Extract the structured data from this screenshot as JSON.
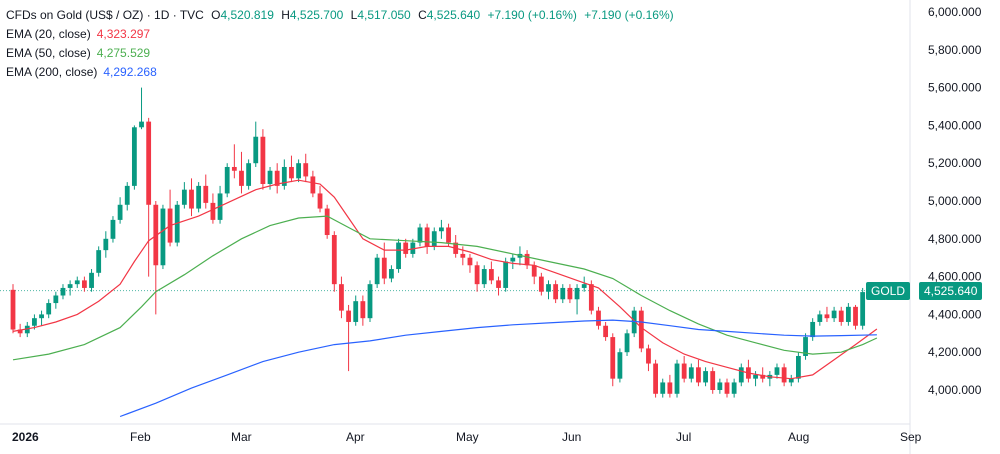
{
  "legend": {
    "symbol": "CFDs on Gold (US$ / OZ) · 1D · TVC",
    "open_label": "O",
    "open": "4,520.819",
    "high_label": "H",
    "high": "4,525.700",
    "low_label": "L",
    "low": "4,517.050",
    "close_label": "C",
    "close": "4,525.640",
    "change": "+7.190 (+0.16%)",
    "change2": "+7.190 (+0.16%)",
    "ema20_label": "EMA (20, close)",
    "ema20_value": "4,323.297",
    "ema50_label": "EMA (50, close)",
    "ema50_value": "4,275.529",
    "ema200_label": "EMA (200, close)",
    "ema200_value": "4,292.268"
  },
  "price_tag": {
    "symbol": "GOLD",
    "price": "4,525.640"
  },
  "colors": {
    "up": "#089981",
    "down": "#f23645",
    "ema20": "#f23645",
    "ema50": "#4caf50",
    "ema200": "#2962ff",
    "tag": "#089981"
  },
  "chart_data": {
    "type": "candlestick",
    "y_ticks": [
      "6,000.000",
      "5,800.000",
      "5,600.000",
      "5,400.000",
      "5,200.000",
      "5,000.000",
      "4,800.000",
      "4,600.000",
      "4,400.000",
      "4,200.000",
      "4,000.000"
    ],
    "x_ticks": [
      "2026",
      "Feb",
      "Mar",
      "Apr",
      "May",
      "Jun",
      "Jul",
      "Aug",
      "Sep"
    ],
    "ylim": [
      3850,
      6080
    ],
    "last_close": 4525.64,
    "candles": [
      [
        4530,
        4560,
        4300,
        4320
      ],
      [
        4320,
        4350,
        4280,
        4300
      ],
      [
        4300,
        4360,
        4280,
        4340
      ],
      [
        4340,
        4400,
        4320,
        4380
      ],
      [
        4380,
        4420,
        4340,
        4400
      ],
      [
        4400,
        4480,
        4380,
        4460
      ],
      [
        4460,
        4520,
        4430,
        4500
      ],
      [
        4500,
        4560,
        4480,
        4540
      ],
      [
        4540,
        4580,
        4500,
        4560
      ],
      [
        4560,
        4600,
        4540,
        4580
      ],
      [
        4580,
        4600,
        4520,
        4540
      ],
      [
        4540,
        4640,
        4520,
        4620
      ],
      [
        4620,
        4760,
        4600,
        4740
      ],
      [
        4740,
        4840,
        4700,
        4800
      ],
      [
        4800,
        4920,
        4780,
        4900
      ],
      [
        4900,
        5020,
        4880,
        4980
      ],
      [
        4980,
        5100,
        4950,
        5080
      ],
      [
        5080,
        5400,
        5060,
        5390
      ],
      [
        5390,
        5600,
        5380,
        5420
      ],
      [
        5420,
        5440,
        4600,
        4980
      ],
      [
        4980,
        5000,
        4400,
        4660
      ],
      [
        4660,
        4980,
        4640,
        4960
      ],
      [
        4960,
        5060,
        4760,
        4780
      ],
      [
        4780,
        5000,
        4760,
        4980
      ],
      [
        4980,
        5100,
        4960,
        5060
      ],
      [
        5060,
        5120,
        4920,
        4960
      ],
      [
        4960,
        5100,
        4940,
        5080
      ],
      [
        5080,
        5140,
        4960,
        4990
      ],
      [
        4990,
        5040,
        4880,
        4900
      ],
      [
        4900,
        5080,
        4880,
        5040
      ],
      [
        5040,
        5200,
        5020,
        5180
      ],
      [
        5180,
        5300,
        5120,
        5160
      ],
      [
        5160,
        5260,
        5040,
        5080
      ],
      [
        5080,
        5220,
        5060,
        5200
      ],
      [
        5200,
        5420,
        5180,
        5340
      ],
      [
        5340,
        5380,
        5060,
        5090
      ],
      [
        5090,
        5180,
        5060,
        5160
      ],
      [
        5160,
        5200,
        5040,
        5080
      ],
      [
        5080,
        5220,
        5060,
        5180
      ],
      [
        5180,
        5240,
        5100,
        5120
      ],
      [
        5120,
        5220,
        5100,
        5200
      ],
      [
        5200,
        5250,
        5100,
        5130
      ],
      [
        5130,
        5160,
        5020,
        5040
      ],
      [
        5040,
        5080,
        4940,
        4960
      ],
      [
        4960,
        4980,
        4800,
        4820
      ],
      [
        4820,
        4840,
        4520,
        4560
      ],
      [
        4560,
        4600,
        4380,
        4420
      ],
      [
        4420,
        4450,
        4100,
        4360
      ],
      [
        4360,
        4500,
        4340,
        4470
      ],
      [
        4470,
        4500,
        4340,
        4380
      ],
      [
        4380,
        4580,
        4360,
        4560
      ],
      [
        4560,
        4720,
        4540,
        4700
      ],
      [
        4700,
        4780,
        4560,
        4590
      ],
      [
        4590,
        4660,
        4570,
        4640
      ],
      [
        4640,
        4800,
        4620,
        4780
      ],
      [
        4780,
        4800,
        4700,
        4720
      ],
      [
        4720,
        4800,
        4700,
        4780
      ],
      [
        4780,
        4880,
        4760,
        4860
      ],
      [
        4860,
        4880,
        4720,
        4760
      ],
      [
        4760,
        4860,
        4740,
        4840
      ],
      [
        4840,
        4900,
        4800,
        4860
      ],
      [
        4860,
        4880,
        4760,
        4780
      ],
      [
        4780,
        4820,
        4700,
        4720
      ],
      [
        4720,
        4760,
        4660,
        4700
      ],
      [
        4700,
        4720,
        4620,
        4660
      ],
      [
        4660,
        4680,
        4520,
        4560
      ],
      [
        4560,
        4660,
        4540,
        4640
      ],
      [
        4640,
        4680,
        4560,
        4580
      ],
      [
        4580,
        4600,
        4500,
        4540
      ],
      [
        4540,
        4700,
        4520,
        4680
      ],
      [
        4680,
        4720,
        4640,
        4700
      ],
      [
        4700,
        4760,
        4660,
        4720
      ],
      [
        4720,
        4740,
        4640,
        4660
      ],
      [
        4660,
        4680,
        4560,
        4600
      ],
      [
        4600,
        4620,
        4500,
        4520
      ],
      [
        4520,
        4580,
        4480,
        4560
      ],
      [
        4560,
        4580,
        4460,
        4480
      ],
      [
        4480,
        4560,
        4460,
        4540
      ],
      [
        4540,
        4560,
        4460,
        4480
      ],
      [
        4480,
        4560,
        4400,
        4540
      ],
      [
        4540,
        4600,
        4520,
        4560
      ],
      [
        4560,
        4580,
        4400,
        4420
      ],
      [
        4420,
        4440,
        4320,
        4340
      ],
      [
        4340,
        4360,
        4260,
        4280
      ],
      [
        4280,
        4300,
        4020,
        4060
      ],
      [
        4060,
        4220,
        4040,
        4200
      ],
      [
        4200,
        4320,
        4180,
        4300
      ],
      [
        4300,
        4440,
        4280,
        4420
      ],
      [
        4420,
        4440,
        4200,
        4220
      ],
      [
        4220,
        4240,
        4100,
        4140
      ],
      [
        4140,
        4160,
        3960,
        3980
      ],
      [
        3980,
        4060,
        3960,
        4040
      ],
      [
        4040,
        4080,
        3960,
        3980
      ],
      [
        3980,
        4160,
        3960,
        4140
      ],
      [
        4140,
        4180,
        4040,
        4060
      ],
      [
        4060,
        4140,
        4040,
        4120
      ],
      [
        4120,
        4160,
        4020,
        4040
      ],
      [
        4040,
        4120,
        4020,
        4100
      ],
      [
        4100,
        4120,
        3980,
        4000
      ],
      [
        4000,
        4060,
        3980,
        4040
      ],
      [
        4040,
        4060,
        3960,
        3980
      ],
      [
        3980,
        4060,
        3960,
        4040
      ],
      [
        4040,
        4140,
        4020,
        4120
      ],
      [
        4120,
        4160,
        4040,
        4060
      ],
      [
        4060,
        4100,
        4020,
        4080
      ],
      [
        4080,
        4120,
        4040,
        4060
      ],
      [
        4060,
        4100,
        4020,
        4080
      ],
      [
        4080,
        4140,
        4060,
        4120
      ],
      [
        4120,
        4140,
        4020,
        4040
      ],
      [
        4040,
        4080,
        4020,
        4060
      ],
      [
        4060,
        4200,
        4040,
        4180
      ],
      [
        4180,
        4300,
        4160,
        4280
      ],
      [
        4280,
        4380,
        4260,
        4360
      ],
      [
        4360,
        4420,
        4340,
        4400
      ],
      [
        4400,
        4440,
        4360,
        4380
      ],
      [
        4380,
        4440,
        4360,
        4420
      ],
      [
        4420,
        4440,
        4340,
        4360
      ],
      [
        4360,
        4460,
        4340,
        4440
      ],
      [
        4440,
        4450,
        4320,
        4340
      ],
      [
        4340,
        4540,
        4320,
        4518
      ],
      [
        4520.819,
        4525.7,
        4517.05,
        4525.64
      ]
    ],
    "series": [
      {
        "name": "EMA (20, close)",
        "values": [
          [
            0,
            4310
          ],
          [
            3,
            4330
          ],
          [
            6,
            4360
          ],
          [
            9,
            4400
          ],
          [
            12,
            4470
          ],
          [
            15,
            4560
          ],
          [
            17,
            4680
          ],
          [
            19,
            4790
          ],
          [
            22,
            4870
          ],
          [
            26,
            4920
          ],
          [
            30,
            4990
          ],
          [
            34,
            5060
          ],
          [
            37,
            5090
          ],
          [
            40,
            5110
          ],
          [
            43,
            5090
          ],
          [
            45,
            5020
          ],
          [
            47,
            4910
          ],
          [
            49,
            4800
          ],
          [
            52,
            4740
          ],
          [
            55,
            4740
          ],
          [
            58,
            4760
          ],
          [
            61,
            4760
          ],
          [
            64,
            4730
          ],
          [
            67,
            4690
          ],
          [
            70,
            4670
          ],
          [
            73,
            4660
          ],
          [
            76,
            4620
          ],
          [
            79,
            4580
          ],
          [
            82,
            4540
          ],
          [
            85,
            4440
          ],
          [
            88,
            4330
          ],
          [
            91,
            4250
          ],
          [
            94,
            4190
          ],
          [
            97,
            4150
          ],
          [
            100,
            4120
          ],
          [
            103,
            4090
          ],
          [
            106,
            4070
          ],
          [
            109,
            4060
          ],
          [
            112,
            4080
          ],
          [
            115,
            4160
          ],
          [
            118,
            4240
          ],
          [
            121,
            4323
          ]
        ]
      },
      {
        "name": "EMA (50, close)",
        "values": [
          [
            0,
            4160
          ],
          [
            5,
            4190
          ],
          [
            10,
            4240
          ],
          [
            15,
            4330
          ],
          [
            18,
            4440
          ],
          [
            20,
            4520
          ],
          [
            24,
            4610
          ],
          [
            28,
            4710
          ],
          [
            32,
            4800
          ],
          [
            36,
            4870
          ],
          [
            40,
            4910
          ],
          [
            44,
            4920
          ],
          [
            47,
            4860
          ],
          [
            50,
            4800
          ],
          [
            55,
            4790
          ],
          [
            60,
            4780
          ],
          [
            65,
            4760
          ],
          [
            70,
            4720
          ],
          [
            75,
            4680
          ],
          [
            80,
            4640
          ],
          [
            84,
            4590
          ],
          [
            88,
            4500
          ],
          [
            92,
            4420
          ],
          [
            96,
            4350
          ],
          [
            100,
            4290
          ],
          [
            104,
            4250
          ],
          [
            108,
            4210
          ],
          [
            112,
            4190
          ],
          [
            116,
            4200
          ],
          [
            119,
            4240
          ],
          [
            121,
            4275
          ]
        ]
      },
      {
        "name": "EMA (200, close)",
        "values": [
          [
            15,
            3860
          ],
          [
            20,
            3930
          ],
          [
            25,
            4010
          ],
          [
            30,
            4080
          ],
          [
            35,
            4150
          ],
          [
            40,
            4200
          ],
          [
            45,
            4240
          ],
          [
            50,
            4260
          ],
          [
            55,
            4290
          ],
          [
            60,
            4310
          ],
          [
            65,
            4330
          ],
          [
            70,
            4345
          ],
          [
            75,
            4355
          ],
          [
            80,
            4365
          ],
          [
            84,
            4370
          ],
          [
            88,
            4360
          ],
          [
            92,
            4340
          ],
          [
            96,
            4320
          ],
          [
            100,
            4310
          ],
          [
            104,
            4300
          ],
          [
            108,
            4290
          ],
          [
            112,
            4285
          ],
          [
            116,
            4288
          ],
          [
            121,
            4292
          ]
        ]
      }
    ]
  }
}
